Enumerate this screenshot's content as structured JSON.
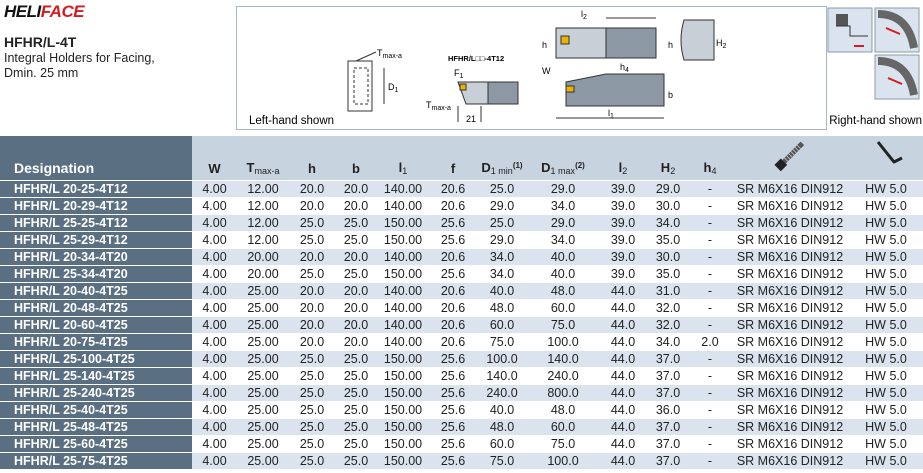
{
  "header": {
    "logo": {
      "part1": "HELI",
      "part2": "FACE"
    },
    "product": "HFHR/L-4T",
    "description": [
      "Integral Holders for Facing,",
      "Dmin. 25 mm"
    ]
  },
  "diagram": {
    "left_caption": "Left-hand shown",
    "right_caption": "Right-hand shown",
    "labels": {
      "tmax_top": "T",
      "tmax_top_sub": "max-a",
      "d1": "D",
      "d1_sub": "1",
      "code": "HFHR/L□□-4T12",
      "f1": "F",
      "f1_sub": "1",
      "tmax_bottom": "T",
      "tmax_bottom_sub": "max-a",
      "dim21": "21",
      "l2": "l",
      "l2_sub": "2",
      "h": "h",
      "h_right": "h",
      "H2": "H",
      "H2_sub": "2",
      "W": "W",
      "h4": "h",
      "h4_sub": "4",
      "b": "b",
      "l1": "l",
      "l1_sub": "1"
    }
  },
  "table": {
    "columns": [
      {
        "text": "Designation"
      },
      {
        "text": "W"
      },
      {
        "text": "T",
        "sub": "max-a"
      },
      {
        "text": "h"
      },
      {
        "text": "b"
      },
      {
        "text": "l",
        "sub": "1"
      },
      {
        "text": "f"
      },
      {
        "text": "D",
        "sub": "1 min",
        "sup": "(1)"
      },
      {
        "text": "D",
        "sub": "1 max",
        "sup": "(2)"
      },
      {
        "text": "l",
        "sub": "2"
      },
      {
        "text": "H",
        "sub": "2"
      },
      {
        "text": "h",
        "sub": "4"
      }
    ],
    "rows": [
      [
        "HFHR/L 20-25-4T12",
        "4.00",
        "12.00",
        "20.0",
        "20.0",
        "140.00",
        "20.6",
        "25.0",
        "29.0",
        "39.0",
        "29.0",
        "-",
        "SR M6X16 DIN912",
        "HW 5.0"
      ],
      [
        "HFHR/L 20-29-4T12",
        "4.00",
        "12.00",
        "20.0",
        "20.0",
        "140.00",
        "20.6",
        "29.0",
        "34.0",
        "39.0",
        "30.0",
        "-",
        "SR M6X16 DIN912",
        "HW 5.0"
      ],
      [
        "HFHR/L 25-25-4T12",
        "4.00",
        "12.00",
        "25.0",
        "25.0",
        "150.00",
        "25.6",
        "25.0",
        "29.0",
        "39.0",
        "34.0",
        "-",
        "SR M6X16 DIN912",
        "HW 5.0"
      ],
      [
        "HFHR/L 25-29-4T12",
        "4.00",
        "12.00",
        "25.0",
        "25.0",
        "150.00",
        "25.6",
        "29.0",
        "34.0",
        "39.0",
        "35.0",
        "-",
        "SR M6X16 DIN912",
        "HW 5.0"
      ],
      [
        "HFHR/L 20-34-4T20",
        "4.00",
        "20.00",
        "20.0",
        "20.0",
        "140.00",
        "20.6",
        "34.0",
        "40.0",
        "39.0",
        "30.0",
        "-",
        "SR M6X16 DIN912",
        "HW 5.0"
      ],
      [
        "HFHR/L 25-34-4T20",
        "4.00",
        "20.00",
        "25.0",
        "25.0",
        "150.00",
        "25.6",
        "34.0",
        "40.0",
        "39.0",
        "35.0",
        "-",
        "SR M6X16 DIN912",
        "HW 5.0"
      ],
      [
        "HFHR/L 20-40-4T25",
        "4.00",
        "25.00",
        "20.0",
        "20.0",
        "140.00",
        "20.6",
        "40.0",
        "48.0",
        "44.0",
        "31.0",
        "-",
        "SR M6X16 DIN912",
        "HW 5.0"
      ],
      [
        "HFHR/L 20-48-4T25",
        "4.00",
        "25.00",
        "20.0",
        "20.0",
        "140.00",
        "20.6",
        "48.0",
        "60.0",
        "44.0",
        "32.0",
        "-",
        "SR M6X16 DIN912",
        "HW 5.0"
      ],
      [
        "HFHR/L 20-60-4T25",
        "4.00",
        "25.00",
        "20.0",
        "20.0",
        "140.00",
        "20.6",
        "60.0",
        "75.0",
        "44.0",
        "32.0",
        "-",
        "SR M6X16 DIN912",
        "HW 5.0"
      ],
      [
        "HFHR/L 20-75-4T25",
        "4.00",
        "25.00",
        "20.0",
        "20.0",
        "140.00",
        "20.6",
        "75.0",
        "100.0",
        "44.0",
        "34.0",
        "2.0",
        "SR M6X16 DIN912",
        "HW 5.0"
      ],
      [
        "HFHR/L 25-100-4T25",
        "4.00",
        "25.00",
        "25.0",
        "25.0",
        "150.00",
        "25.6",
        "100.0",
        "140.0",
        "44.0",
        "37.0",
        "-",
        "SR M6X16 DIN912",
        "HW 5.0"
      ],
      [
        "HFHR/L 25-140-4T25",
        "4.00",
        "25.00",
        "25.0",
        "25.0",
        "150.00",
        "25.6",
        "140.0",
        "240.0",
        "44.0",
        "37.0",
        "-",
        "SR M6X16 DIN912",
        "HW 5.0"
      ],
      [
        "HFHR/L 25-240-4T25",
        "4.00",
        "25.00",
        "25.0",
        "25.0",
        "150.00",
        "25.6",
        "240.0",
        "800.0",
        "44.0",
        "37.0",
        "-",
        "SR M6X16 DIN912",
        "HW 5.0"
      ],
      [
        "HFHR/L 25-40-4T25",
        "4.00",
        "25.00",
        "25.0",
        "25.0",
        "150.00",
        "25.6",
        "40.0",
        "48.0",
        "44.0",
        "36.0",
        "-",
        "SR M6X16 DIN912",
        "HW 5.0"
      ],
      [
        "HFHR/L 25-48-4T25",
        "4.00",
        "25.00",
        "25.0",
        "25.0",
        "150.00",
        "25.6",
        "48.0",
        "60.0",
        "44.0",
        "37.0",
        "-",
        "SR M6X16 DIN912",
        "HW 5.0"
      ],
      [
        "HFHR/L 25-60-4T25",
        "4.00",
        "25.00",
        "25.0",
        "25.0",
        "150.00",
        "25.6",
        "60.0",
        "75.0",
        "44.0",
        "37.0",
        "-",
        "SR M6X16 DIN912",
        "HW 5.0"
      ],
      [
        "HFHR/L 25-75-4T25",
        "4.00",
        "25.00",
        "25.0",
        "25.0",
        "150.00",
        "25.6",
        "75.0",
        "100.0",
        "44.0",
        "37.0",
        "-",
        "SR M6X16 DIN912",
        "HW 5.0"
      ]
    ]
  }
}
